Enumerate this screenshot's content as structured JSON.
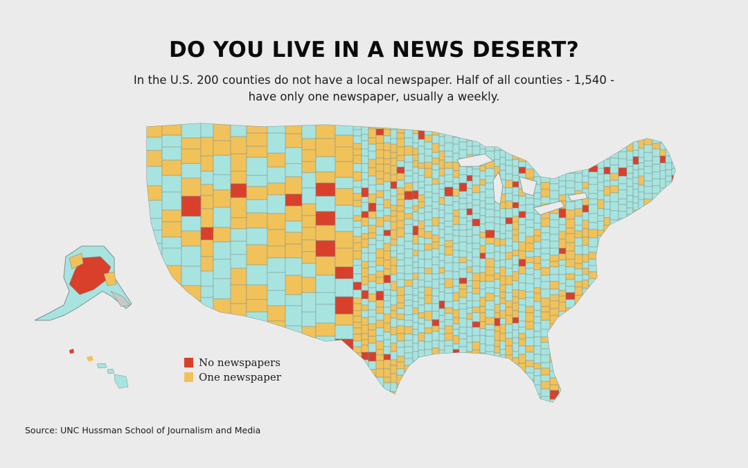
{
  "title": "DO YOU LIVE IN A NEWS DESERT?",
  "subtitle_line1": "In the U.S. 200 counties do not have a local newspaper.  Half of all counties - 1,540 -",
  "subtitle_line2": "have only one newspaper, usually a weekly.",
  "legend": {
    "items": [
      {
        "label": "No newspapers",
        "color": "#d9402b"
      },
      {
        "label": "One newspaper",
        "color": "#f1c25a"
      }
    ]
  },
  "source": "Source:  UNC Hussman School of Journalism and Media",
  "colors": {
    "background": "#ebebeb",
    "multiple_newspapers": "#a8e4df",
    "one_newspaper": "#f1c25a",
    "no_newspapers": "#d9402b",
    "county_border": "#7d8e8c"
  }
}
